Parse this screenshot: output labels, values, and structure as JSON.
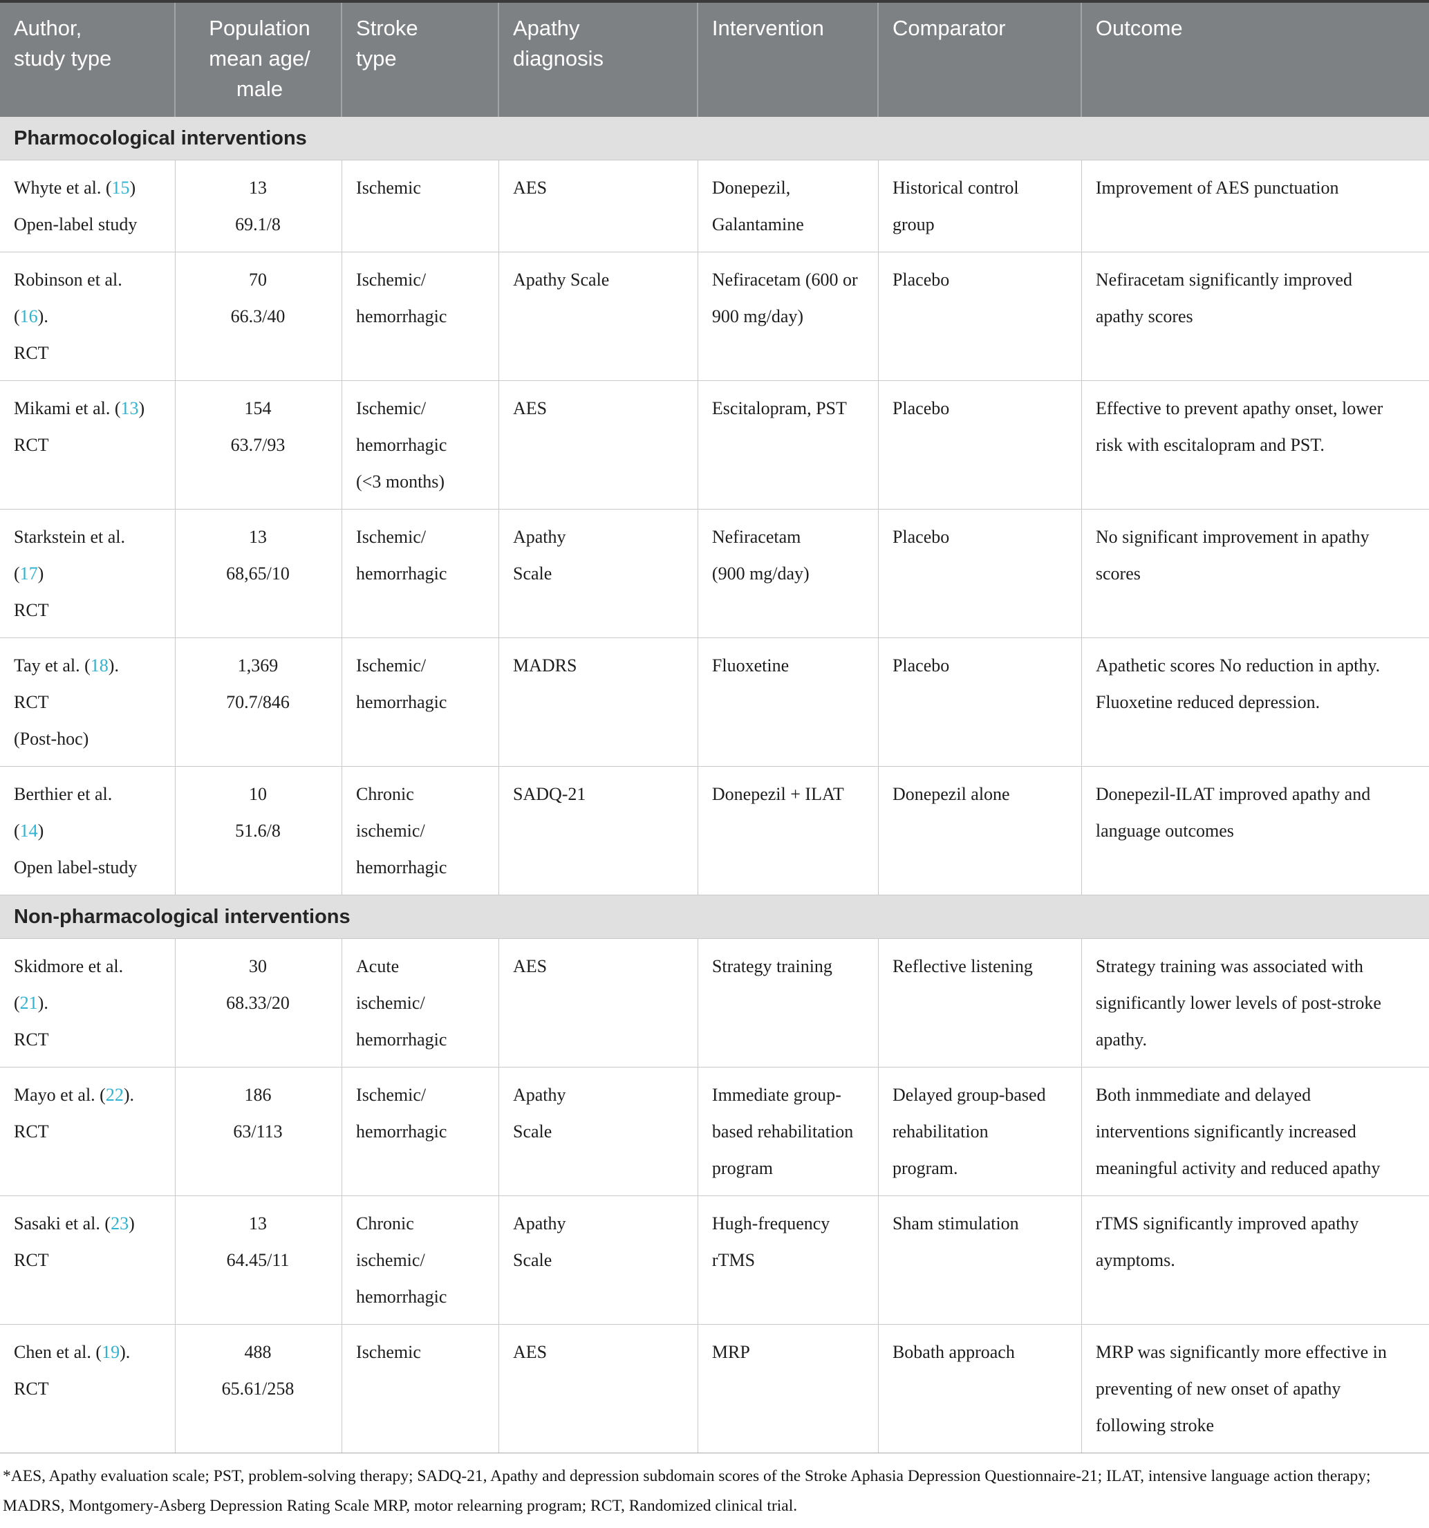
{
  "colors": {
    "header_bg": "#7e8183",
    "header_text": "#ffffff",
    "section_bg": "#e0e0e1",
    "grid_line": "#c8c9ca",
    "top_border": "#3a3a3b",
    "body_text": "#1d1d1d",
    "citation": "#2fb3d2",
    "page_bg": "#ffffff"
  },
  "table": {
    "columns": [
      {
        "id": "author",
        "lines": [
          "Author,",
          "study type"
        ]
      },
      {
        "id": "population",
        "lines": [
          "Population",
          "mean age/",
          "male"
        ]
      },
      {
        "id": "stroke",
        "lines": [
          "Stroke",
          "type"
        ]
      },
      {
        "id": "apathy",
        "lines": [
          "Apathy",
          "diagnosis"
        ]
      },
      {
        "id": "intervention",
        "lines": [
          "Intervention"
        ]
      },
      {
        "id": "comparator",
        "lines": [
          "Comparator"
        ]
      },
      {
        "id": "outcome",
        "lines": [
          "Outcome"
        ]
      }
    ],
    "sections": [
      {
        "label": "Pharmocological interventions",
        "rows": [
          {
            "author": [
              "Whyte et al. (15)",
              "Open-label study"
            ],
            "population": [
              "13",
              "69.1/8"
            ],
            "stroke": [
              "Ischemic"
            ],
            "apathy": [
              "AES"
            ],
            "intervention": [
              "Donepezil,",
              "Galantamine"
            ],
            "comparator": [
              "Historical control",
              "group"
            ],
            "outcome": [
              "Improvement of AES punctuation"
            ]
          },
          {
            "author": [
              "Robinson et al.",
              "(16).",
              "RCT"
            ],
            "population": [
              "70",
              "66.3/40"
            ],
            "stroke": [
              "Ischemic/",
              "hemorrhagic"
            ],
            "apathy": [
              "Apathy Scale"
            ],
            "intervention": [
              "Nefiracetam (600 or",
              "900 mg/day)"
            ],
            "comparator": [
              "Placebo"
            ],
            "outcome": [
              "Nefiracetam significantly improved",
              "apathy scores"
            ]
          },
          {
            "author": [
              "Mikami et al. (13)",
              "RCT"
            ],
            "population": [
              "154",
              "63.7/93"
            ],
            "stroke": [
              "Ischemic/",
              "hemorrhagic",
              "(<3 months)"
            ],
            "apathy": [
              "AES"
            ],
            "intervention": [
              "Escitalopram, PST"
            ],
            "comparator": [
              "Placebo"
            ],
            "outcome": [
              "Effective to prevent apathy onset, lower",
              "risk with escitalopram and PST."
            ]
          },
          {
            "author": [
              "Starkstein et al.",
              "(17)",
              "RCT"
            ],
            "population": [
              "13",
              "68,65/10"
            ],
            "stroke": [
              "Ischemic/",
              "hemorrhagic"
            ],
            "apathy": [
              "Apathy",
              "Scale"
            ],
            "intervention": [
              "Nefiracetam",
              "(900 mg/day)"
            ],
            "comparator": [
              "Placebo"
            ],
            "outcome": [
              "No significant improvement in apathy",
              "scores"
            ]
          },
          {
            "author": [
              "Tay et al. (18).",
              "RCT",
              "(Post-hoc)"
            ],
            "population": [
              "1,369",
              "70.7/846"
            ],
            "stroke": [
              "Ischemic/",
              "hemorrhagic"
            ],
            "apathy": [
              "MADRS"
            ],
            "intervention": [
              "Fluoxetine"
            ],
            "comparator": [
              "Placebo"
            ],
            "outcome": [
              "Apathetic scores No reduction in apthy.",
              "Fluoxetine reduced depression."
            ]
          },
          {
            "author": [
              "Berthier et al.",
              "(14)",
              "Open label-study"
            ],
            "population": [
              "10",
              "51.6/8"
            ],
            "stroke": [
              "Chronic",
              "ischemic/",
              "hemorrhagic"
            ],
            "apathy": [
              "SADQ-21"
            ],
            "intervention": [
              "Donepezil + ILAT"
            ],
            "comparator": [
              "Donepezil alone"
            ],
            "outcome": [
              "Donepezil-ILAT improved apathy and",
              "language outcomes"
            ]
          }
        ]
      },
      {
        "label": "Non-pharmacological interventions",
        "rows": [
          {
            "author": [
              "Skidmore et al.",
              "(21).",
              "RCT"
            ],
            "population": [
              "30",
              "68.33/20"
            ],
            "stroke": [
              "Acute",
              "ischemic/",
              "hemorrhagic"
            ],
            "apathy": [
              "AES"
            ],
            "intervention": [
              "Strategy training"
            ],
            "comparator": [
              "Reflective listening"
            ],
            "outcome": [
              "Strategy training was associated with",
              "significantly lower levels of post-stroke",
              "apathy."
            ]
          },
          {
            "author": [
              "Mayo et al. (22).",
              "RCT"
            ],
            "population": [
              "186",
              "63/113"
            ],
            "stroke": [
              "Ischemic/",
              "hemorrhagic"
            ],
            "apathy": [
              "Apathy",
              "Scale"
            ],
            "intervention": [
              "Immediate group-",
              "based rehabilitation",
              "program"
            ],
            "comparator": [
              "Delayed group-based",
              "rehabilitation",
              "program."
            ],
            "outcome": [
              "Both inmmediate and delayed",
              "interventions significantly increased",
              "meaningful activity and reduced apathy"
            ]
          },
          {
            "author": [
              "Sasaki et al. (23)",
              "RCT"
            ],
            "population": [
              "13",
              "64.45/11"
            ],
            "stroke": [
              "Chronic",
              "ischemic/",
              "hemorrhagic"
            ],
            "apathy": [
              "Apathy",
              "Scale"
            ],
            "intervention": [
              "Hugh-frequency",
              "rTMS"
            ],
            "comparator": [
              "Sham stimulation"
            ],
            "outcome": [
              "rTMS significantly improved apathy",
              "aymptoms."
            ]
          },
          {
            "author": [
              "Chen et al. (19).",
              "RCT"
            ],
            "population": [
              "488",
              "65.61/258"
            ],
            "stroke": [
              "Ischemic"
            ],
            "apathy": [
              "AES"
            ],
            "intervention": [
              "MRP"
            ],
            "comparator": [
              "Bobath approach"
            ],
            "outcome": [
              "MRP was significantly more effective in",
              "preventing of new onset of apathy",
              "following stroke"
            ]
          }
        ]
      }
    ]
  },
  "footnote": "*AES, Apathy evaluation scale; PST, problem-solving therapy; SADQ-21, Apathy and depression subdomain scores of the Stroke Aphasia Depression Questionnaire-21; ILAT, intensive language action therapy; MADRS, Montgomery-Asberg Depression Rating Scale MRP, motor relearning program; RCT, Randomized clinical trial."
}
